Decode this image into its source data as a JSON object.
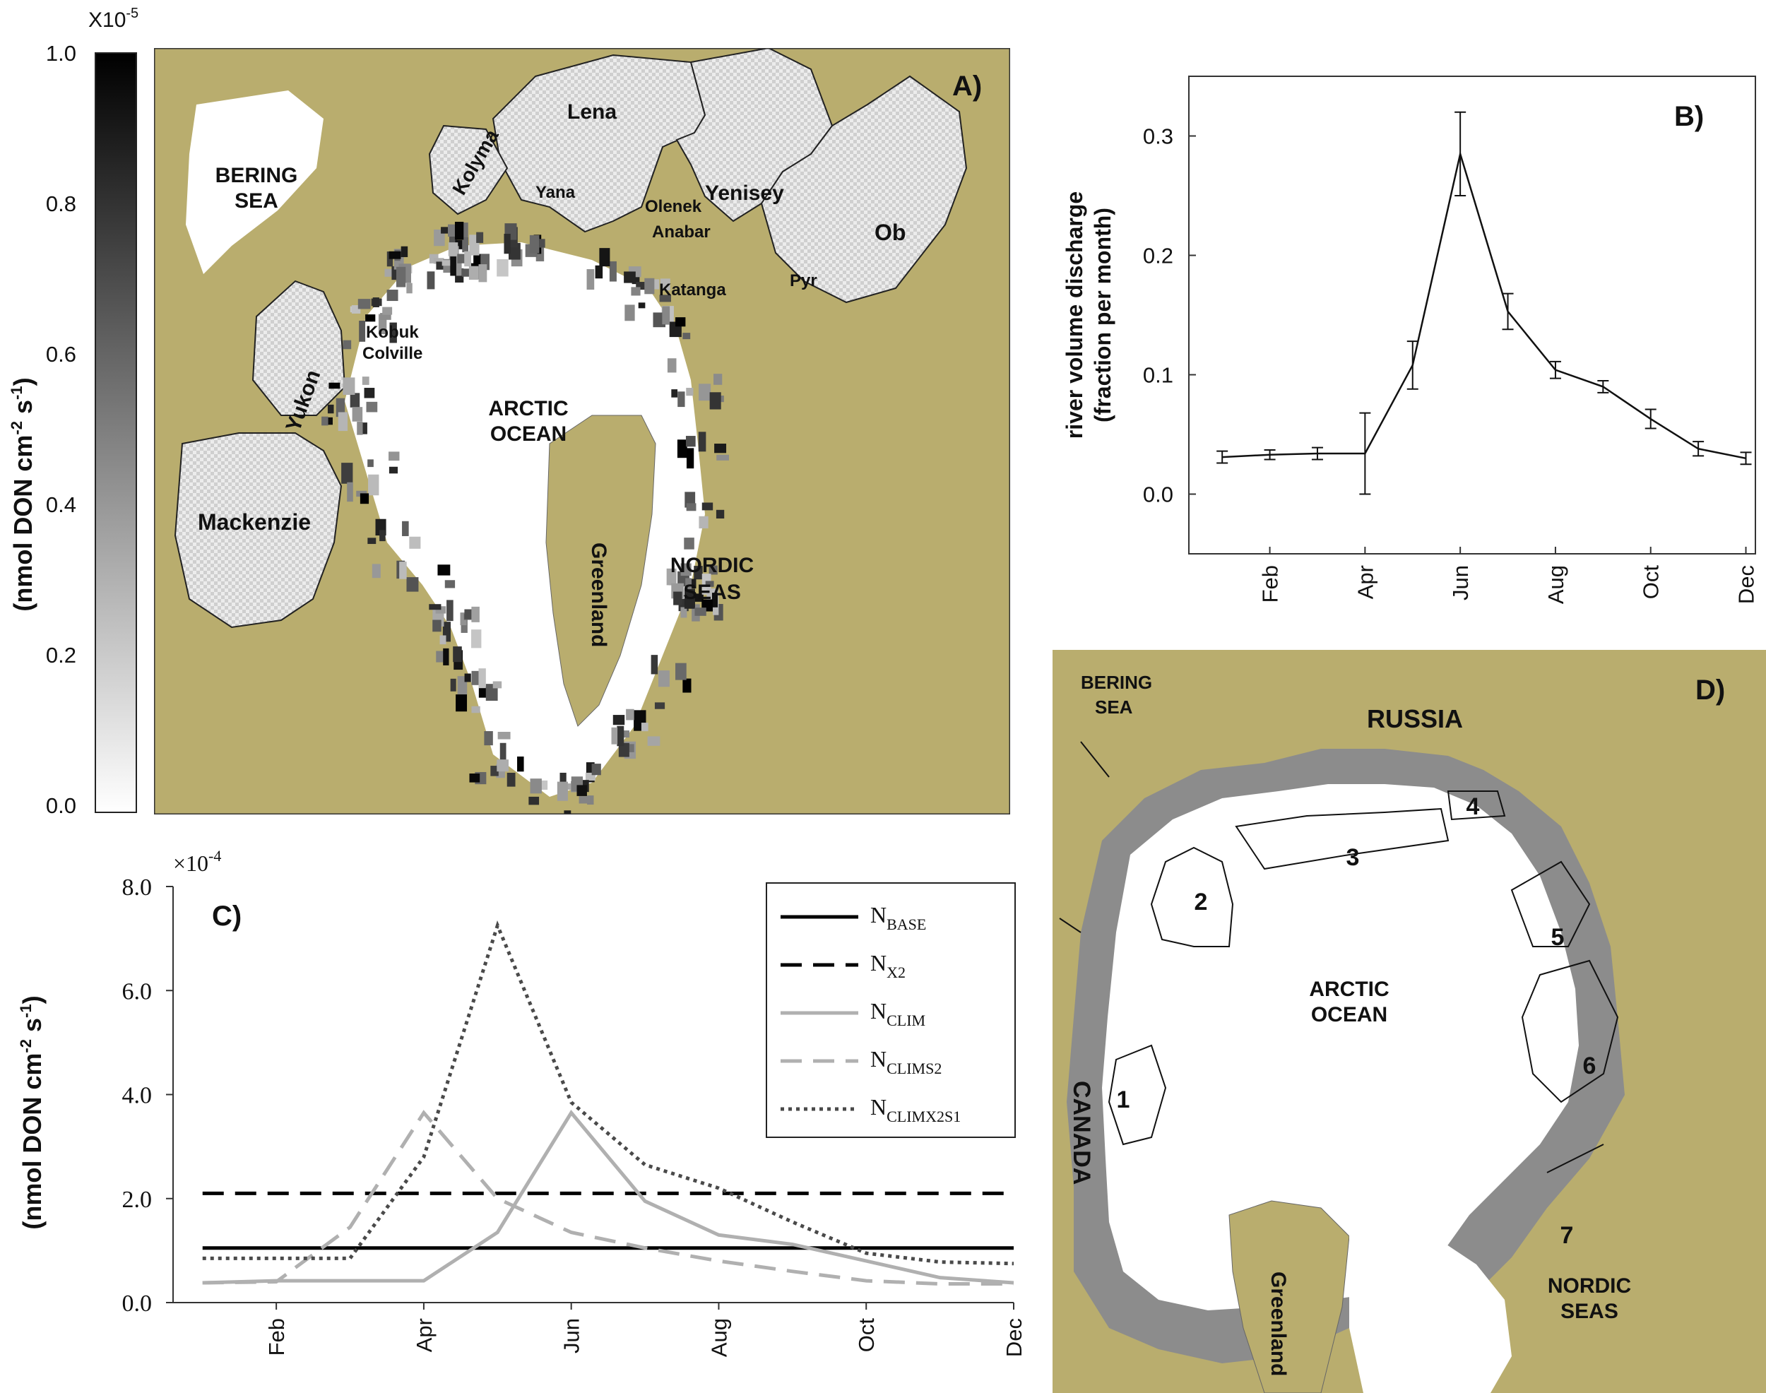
{
  "colors": {
    "land": "#b9ad6e",
    "ocean": "#ffffff",
    "shelf": "#8c8c8c",
    "frame": "#333333"
  },
  "panel_a": {
    "label": "A)",
    "colorbar": {
      "multiplier": "X10",
      "multiplier_exp": "-5",
      "ticks": [
        "1.0",
        "0.8",
        "0.6",
        "0.4",
        "0.2",
        "0.0"
      ],
      "title_prefix": "(nmol DON cm",
      "title_exp1": "-2",
      "title_mid": " s",
      "title_exp2": "-1",
      "title_suffix": ")"
    },
    "basins": [
      "Lena",
      "Kolyma",
      "Yana",
      "Olenek",
      "Anabar",
      "Katanga",
      "Yenisey",
      "Pyr",
      "Ob",
      "Kobuk",
      "Colville",
      "Yukon",
      "Mackenzie",
      "Greenland"
    ],
    "regions": [
      "BERING",
      "SEA",
      "ARCTIC",
      "OCEAN",
      "NORDIC",
      "SEAS"
    ]
  },
  "panel_d": {
    "label": "D)",
    "places": [
      "BERING",
      "SEA",
      "RUSSIA",
      "ARCTIC",
      "OCEAN",
      "CANADA",
      "Greenland",
      "NORDIC",
      "SEAS"
    ],
    "zones": [
      "1",
      "2",
      "3",
      "4",
      "5",
      "6",
      "7"
    ]
  },
  "chart_data": [
    {
      "panel": "B)",
      "type": "line",
      "ylabel_line1": "river volume discharge",
      "ylabel_line2": "(fraction per month)",
      "x": [
        1,
        2,
        3,
        4,
        5,
        6,
        7,
        8,
        9,
        10,
        11,
        12
      ],
      "xticks": [
        2,
        4,
        6,
        8,
        10,
        12
      ],
      "xtick_labels": [
        "Feb",
        "Apr",
        "Jun",
        "Aug",
        "Oct",
        "Dec"
      ],
      "yticks": [
        0.0,
        0.1,
        0.2,
        0.3
      ],
      "ytick_labels": [
        "0.0",
        "0.1",
        "0.2",
        "0.3"
      ],
      "xlim": [
        0.3,
        12.2
      ],
      "ylim": [
        -0.05,
        0.35
      ],
      "series": [
        {
          "values": [
            0.031,
            0.033,
            0.034,
            0.034,
            0.108,
            0.285,
            0.153,
            0.104,
            0.09,
            0.063,
            0.038,
            0.03
          ],
          "errors": [
            0.005,
            0.004,
            0.005,
            0.034,
            0.02,
            0.035,
            0.015,
            0.007,
            0.005,
            0.008,
            0.006,
            0.005
          ]
        }
      ]
    },
    {
      "panel": "C)",
      "type": "line",
      "multiplier": "×10",
      "multiplier_exp": "-4",
      "ylabel_prefix": "(nmol DON cm",
      "ylabel_exp1": "-2",
      "ylabel_mid": " s",
      "ylabel_exp2": "-1",
      "ylabel_suffix": ")",
      "x": [
        1,
        2,
        3,
        4,
        5,
        6,
        7,
        8,
        9,
        10,
        11,
        12
      ],
      "xticks": [
        2,
        4,
        6,
        8,
        10,
        12
      ],
      "xtick_labels": [
        "Feb",
        "Apr",
        "Jun",
        "Aug",
        "Oct",
        "Dec"
      ],
      "yticks": [
        0,
        2,
        4,
        6,
        8
      ],
      "ytick_labels": [
        "0.0",
        "2.0",
        "4.0",
        "6.0",
        "8.0"
      ],
      "xlim": [
        0.6,
        12
      ],
      "ylim": [
        0,
        8
      ],
      "legend_position": "top-right",
      "series": [
        {
          "name": "N",
          "sub": "BASE",
          "style": "solid-black",
          "values": [
            1.05,
            1.05,
            1.05,
            1.05,
            1.05,
            1.05,
            1.05,
            1.05,
            1.05,
            1.05,
            1.05,
            1.05
          ]
        },
        {
          "name": "N",
          "sub": "X2",
          "style": "dashed-black",
          "values": [
            2.1,
            2.1,
            2.1,
            2.1,
            2.1,
            2.1,
            2.1,
            2.1,
            2.1,
            2.1,
            2.1,
            2.1
          ]
        },
        {
          "name": "N",
          "sub": "CLIM",
          "style": "solid-gray",
          "values": [
            0.38,
            0.42,
            0.42,
            0.42,
            1.35,
            3.65,
            1.95,
            1.3,
            1.12,
            0.8,
            0.48,
            0.38
          ]
        },
        {
          "name": "N",
          "sub": "CLIMS2",
          "style": "dashed-gray",
          "values": [
            0.38,
            0.4,
            1.45,
            3.65,
            2.0,
            1.35,
            1.05,
            0.8,
            0.6,
            0.42,
            0.36,
            0.36
          ]
        },
        {
          "name": "N",
          "sub": "CLIMX2S1",
          "style": "dotted-dark",
          "values": [
            0.85,
            0.85,
            0.85,
            2.8,
            7.25,
            3.85,
            2.65,
            2.2,
            1.55,
            0.95,
            0.78,
            0.75
          ]
        }
      ]
    }
  ]
}
